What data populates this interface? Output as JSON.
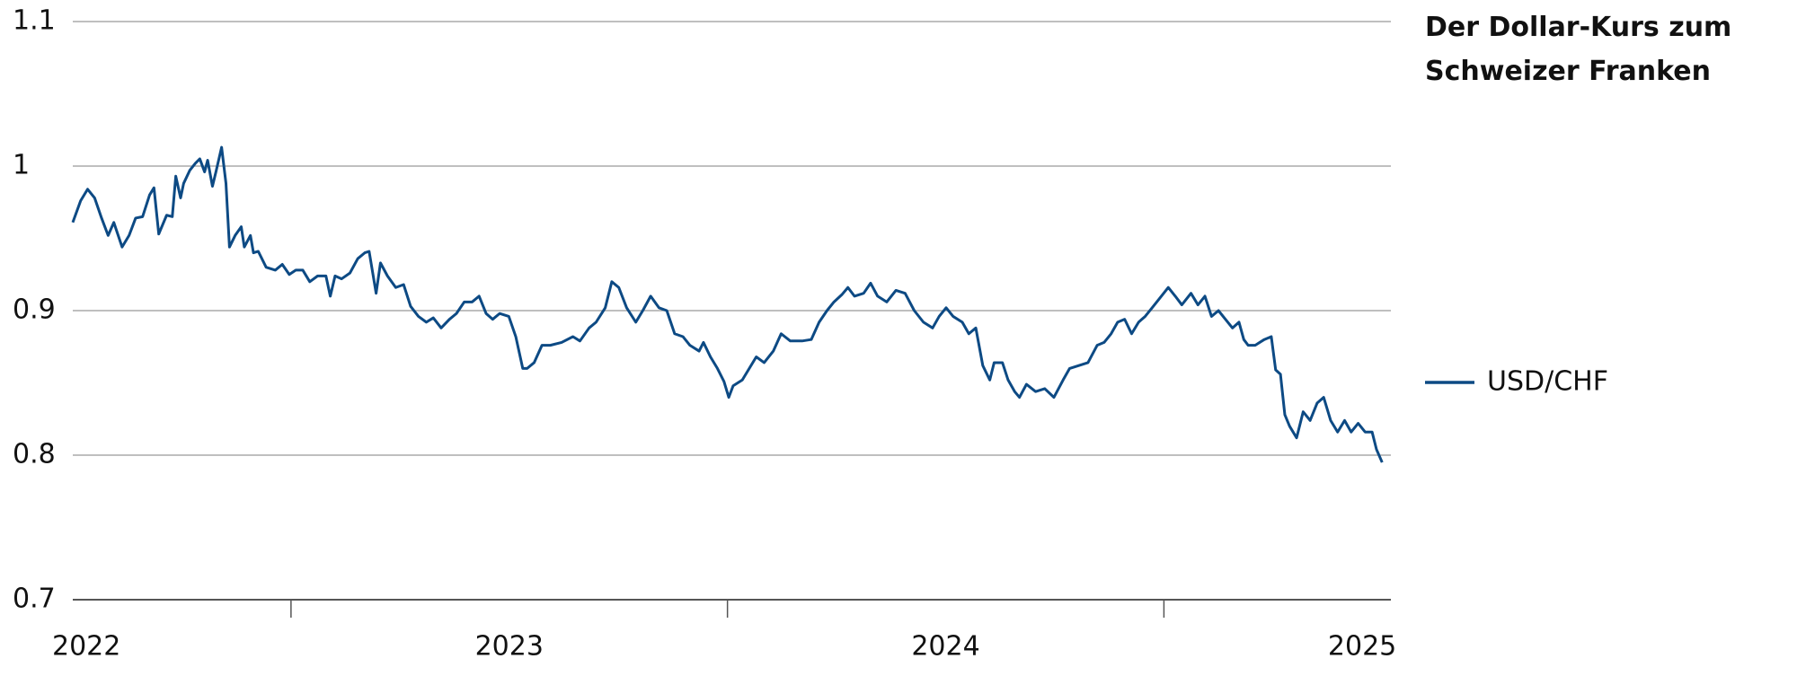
{
  "chart_data": {
    "type": "line",
    "title": "Der Dollar-Kurs zum Schweizer Franken",
    "x": [
      2022.0,
      2022.018,
      2022.034,
      2022.05,
      2022.066,
      2022.081,
      2022.094,
      2022.113,
      2022.129,
      2022.144,
      2022.16,
      2022.176,
      2022.186,
      2022.197,
      2022.215,
      2022.228,
      2022.236,
      2022.247,
      2022.254,
      2022.268,
      2022.281,
      2022.291,
      2022.302,
      2022.309,
      2022.32,
      2022.328,
      2022.341,
      2022.351,
      2022.359,
      2022.372,
      2022.386,
      2022.393,
      2022.407,
      2022.414,
      2022.425,
      2022.443,
      2022.464,
      2022.48,
      2022.496,
      2022.511,
      2022.527,
      2022.543,
      2022.561,
      2022.58,
      2022.59,
      2022.601,
      2022.616,
      2022.635,
      2022.653,
      2022.669,
      2022.679,
      2022.695,
      2022.705,
      2022.721,
      2022.74,
      2022.758,
      2022.774,
      2022.792,
      2022.81,
      2022.826,
      2022.844,
      2022.863,
      2022.879,
      2022.897,
      2022.915,
      2022.931,
      2022.947,
      2022.962,
      2022.978,
      2022.999,
      2023.015,
      2023.031,
      2023.041,
      2023.057,
      2023.075,
      2023.094,
      2023.12,
      2023.146,
      2023.162,
      2023.183,
      2023.199,
      2023.22,
      2023.235,
      2023.251,
      2023.269,
      2023.29,
      2023.306,
      2023.324,
      2023.343,
      2023.361,
      2023.379,
      2023.398,
      2023.414,
      2023.435,
      2023.445,
      2023.461,
      2023.477,
      2023.492,
      2023.503,
      2023.513,
      2023.534,
      2023.55,
      2023.566,
      2023.584,
      2023.605,
      2023.623,
      2023.644,
      2023.671,
      2023.692,
      2023.71,
      2023.728,
      2023.744,
      2023.762,
      2023.776,
      2023.791,
      2023.812,
      2023.828,
      2023.844,
      2023.865,
      2023.886,
      2023.907,
      2023.928,
      2023.949,
      2023.97,
      2023.985,
      2024.001,
      2024.017,
      2024.038,
      2024.053,
      2024.069,
      2024.085,
      2024.101,
      2024.111,
      2024.13,
      2024.143,
      2024.158,
      2024.169,
      2024.185,
      2024.206,
      2024.227,
      2024.248,
      2024.269,
      2024.284,
      2024.305,
      2024.326,
      2024.347,
      2024.363,
      2024.379,
      2024.394,
      2024.41,
      2024.426,
      2024.442,
      2024.457,
      2024.473,
      2024.489,
      2024.51,
      2024.526,
      2024.541,
      2024.562,
      2024.578,
      2024.594,
      2024.609,
      2024.625,
      2024.641,
      2024.657,
      2024.672,
      2024.683,
      2024.693,
      2024.709,
      2024.73,
      2024.746,
      2024.756,
      2024.767,
      2024.777,
      2024.788,
      2024.804,
      2024.819,
      2024.835,
      2024.851,
      2024.866,
      2024.882,
      2024.898,
      2024.914,
      2024.929,
      2024.945,
      2024.961,
      2024.977,
      2024.987,
      2025.0
    ],
    "series": [
      {
        "name": "USD/CHF",
        "color": "#0d4a84",
        "values": [
          0.961,
          0.976,
          0.984,
          0.978,
          0.964,
          0.952,
          0.961,
          0.944,
          0.952,
          0.964,
          0.965,
          0.98,
          0.985,
          0.953,
          0.966,
          0.965,
          0.993,
          0.978,
          0.988,
          0.997,
          1.002,
          1.005,
          0.996,
          1.004,
          0.986,
          0.996,
          1.013,
          0.988,
          0.944,
          0.952,
          0.958,
          0.944,
          0.952,
          0.94,
          0.941,
          0.93,
          0.928,
          0.932,
          0.925,
          0.928,
          0.928,
          0.92,
          0.924,
          0.924,
          0.91,
          0.924,
          0.922,
          0.926,
          0.936,
          0.94,
          0.941,
          0.912,
          0.933,
          0.924,
          0.916,
          0.918,
          0.903,
          0.896,
          0.892,
          0.895,
          0.888,
          0.894,
          0.898,
          0.906,
          0.906,
          0.91,
          0.898,
          0.894,
          0.898,
          0.896,
          0.882,
          0.86,
          0.86,
          0.864,
          0.876,
          0.876,
          0.878,
          0.882,
          0.879,
          0.888,
          0.892,
          0.902,
          0.92,
          0.916,
          0.902,
          0.892,
          0.9,
          0.91,
          0.902,
          0.9,
          0.884,
          0.882,
          0.876,
          0.872,
          0.878,
          0.868,
          0.86,
          0.851,
          0.84,
          0.848,
          0.852,
          0.86,
          0.868,
          0.864,
          0.872,
          0.884,
          0.879,
          0.879,
          0.88,
          0.892,
          0.9,
          0.906,
          0.911,
          0.916,
          0.91,
          0.912,
          0.919,
          0.91,
          0.906,
          0.914,
          0.912,
          0.9,
          0.892,
          0.888,
          0.896,
          0.902,
          0.896,
          0.892,
          0.884,
          0.888,
          0.862,
          0.852,
          0.864,
          0.864,
          0.852,
          0.844,
          0.84,
          0.849,
          0.844,
          0.846,
          0.84,
          0.852,
          0.86,
          0.862,
          0.864,
          0.876,
          0.878,
          0.884,
          0.892,
          0.894,
          0.884,
          0.892,
          0.896,
          0.902,
          0.908,
          0.916,
          0.91,
          0.904,
          0.912,
          0.904,
          0.91,
          0.896,
          0.9,
          0.894,
          0.888,
          0.892,
          0.88,
          0.876,
          0.876,
          0.88,
          0.882,
          0.859,
          0.856,
          0.828,
          0.82,
          0.812,
          0.83,
          0.824,
          0.836,
          0.84,
          0.824,
          0.816,
          0.824,
          0.816,
          0.822,
          0.816,
          0.816,
          0.804,
          0.795
        ]
      }
    ],
    "xlim": [
      2022,
      2025.02
    ],
    "xticks": [
      2022,
      2023,
      2024,
      2025
    ],
    "xminorticks": [
      2022.5,
      2023.5,
      2024.5
    ],
    "ylim": [
      0.7,
      1.1
    ],
    "yticks": [
      0.7,
      0.8,
      0.9,
      1.0,
      1.1
    ],
    "grid": true
  }
}
